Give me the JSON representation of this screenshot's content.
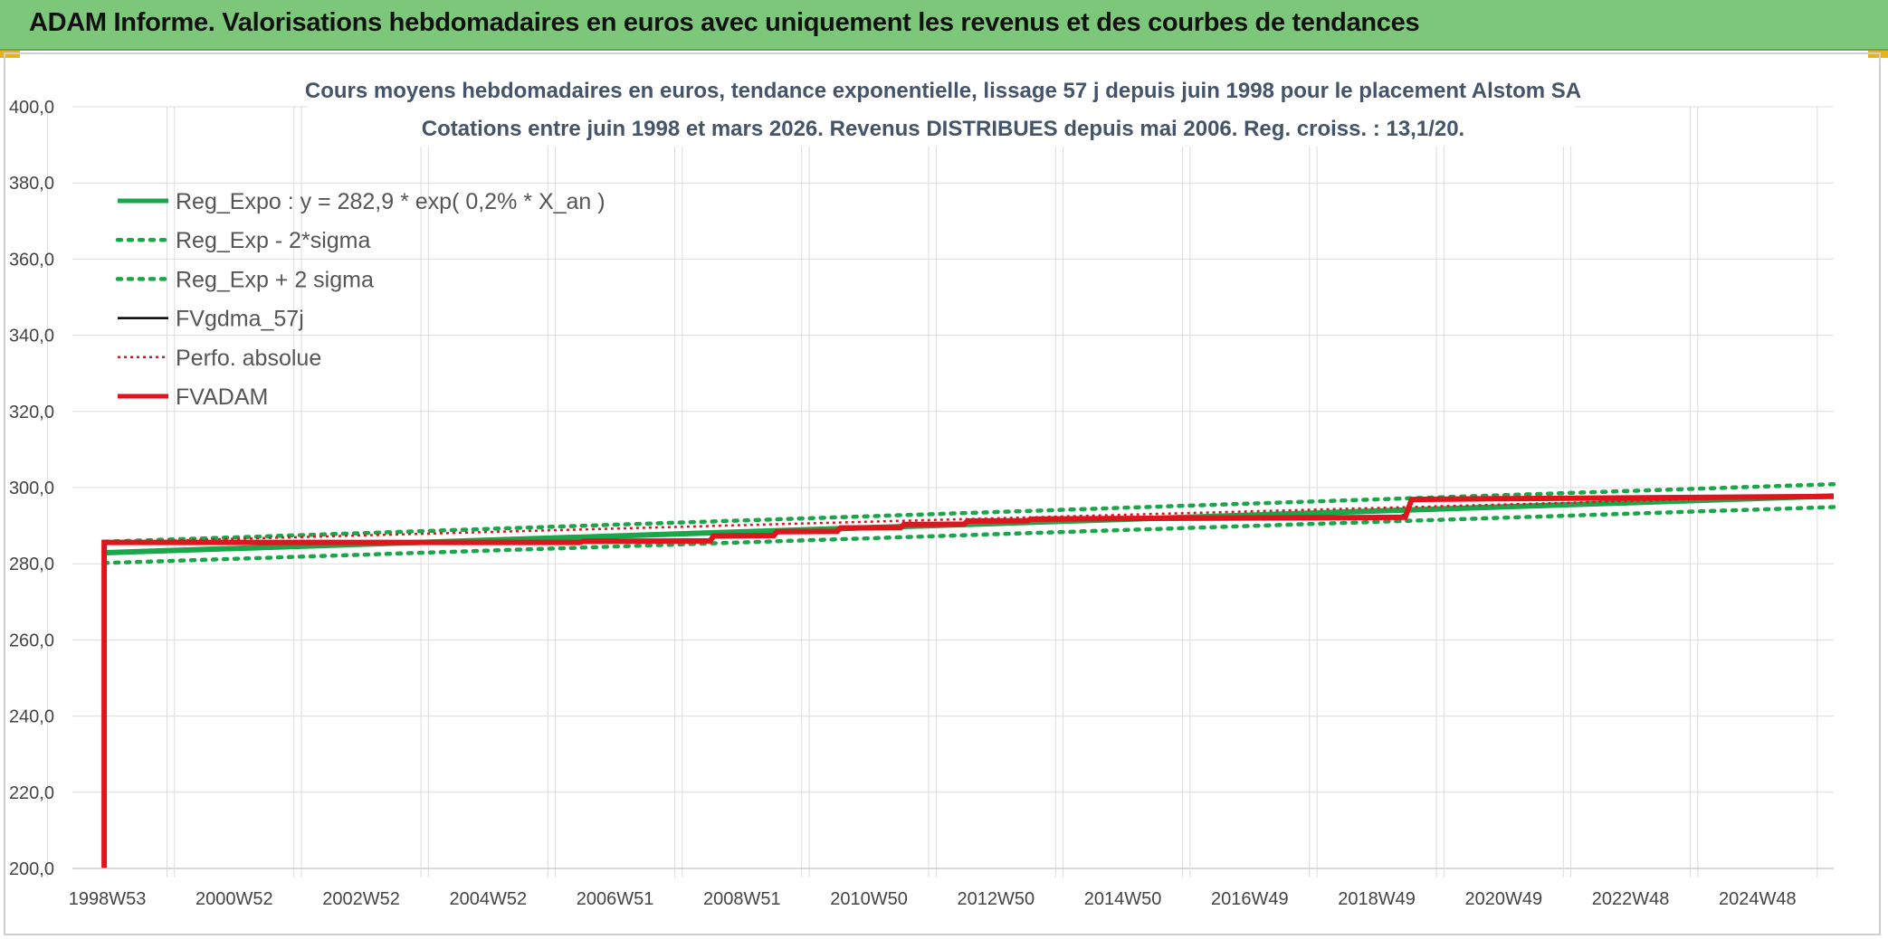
{
  "banner": {
    "title": "ADAM Informe. Valorisations hebdomadaires en euros avec uniquement les revenus et des courbes de tendances"
  },
  "colors": {
    "banner_bg": "#7dc77b",
    "green": "#1aa64a",
    "black": "#000000",
    "red": "#e0141c",
    "grid": "#dadada"
  },
  "chart_data": {
    "type": "line",
    "title": "Cours moyens hebdomadaires en euros, tendance exponentielle, lissage 57 j depuis juin 1998 pour le placement Alstom SA",
    "subtitle": "Cotations entre juin 1998 et mars 2026. Revenus DISTRIBUES depuis mai 2006. Reg. croiss. : 13,1/20.",
    "xlabel": "",
    "ylabel": "",
    "x_range": [
      1998.45,
      2026.2
    ],
    "ylim": [
      200,
      400
    ],
    "y_ticks": [
      "200,0",
      "220,0",
      "240,0",
      "260,0",
      "280,0",
      "300,0",
      "320,0",
      "340,0",
      "360,0",
      "380,0",
      "400,0"
    ],
    "y_tick_values": [
      200,
      220,
      240,
      260,
      280,
      300,
      320,
      340,
      360,
      380,
      400
    ],
    "x_ticks": [
      {
        "label": "1998W53",
        "x": 1999.0
      },
      {
        "label": "2000W52",
        "x": 2001.0
      },
      {
        "label": "2002W52",
        "x": 2003.0
      },
      {
        "label": "2004W52",
        "x": 2005.0
      },
      {
        "label": "2006W51",
        "x": 2007.0
      },
      {
        "label": "2008W51",
        "x": 2009.0
      },
      {
        "label": "2010W50",
        "x": 2011.0
      },
      {
        "label": "2012W50",
        "x": 2013.0
      },
      {
        "label": "2014W50",
        "x": 2015.0
      },
      {
        "label": "2016W49",
        "x": 2017.0
      },
      {
        "label": "2018W49",
        "x": 2019.0
      },
      {
        "label": "2020W49",
        "x": 2021.0
      },
      {
        "label": "2022W48",
        "x": 2023.0
      },
      {
        "label": "2024W48",
        "x": 2025.0
      }
    ],
    "grid": true,
    "legend_position": "top-left",
    "series": [
      {
        "name": "Reg_Expo : y = 282,9 * exp( 0,2% *  X_an )",
        "color": "#1aa64a",
        "style": "solid-thick",
        "points": [
          [
            1998.95,
            282.9
          ],
          [
            2026.2,
            297.8
          ]
        ]
      },
      {
        "name": "Reg_Exp - 2*sigma",
        "color": "#1aa64a",
        "style": "dotted",
        "points": [
          [
            1998.95,
            280.2
          ],
          [
            2026.2,
            294.9
          ]
        ]
      },
      {
        "name": "Reg_Exp + 2 sigma",
        "color": "#1aa64a",
        "style": "dotted",
        "points": [
          [
            1998.95,
            285.8
          ],
          [
            2026.2,
            300.9
          ]
        ]
      },
      {
        "name": "FVgdma_57j",
        "color": "#000000",
        "style": "solid-thin",
        "points": [
          [
            1998.95,
            285.5
          ],
          [
            2006.4,
            285.5
          ],
          [
            2006.45,
            285.9
          ],
          [
            2008.5,
            286.0
          ],
          [
            2008.55,
            287.2
          ],
          [
            2009.5,
            287.3
          ],
          [
            2009.55,
            288.3
          ],
          [
            2010.5,
            288.4
          ],
          [
            2010.55,
            289.3
          ],
          [
            2011.5,
            289.4
          ],
          [
            2011.55,
            290.2
          ],
          [
            2012.5,
            290.3
          ],
          [
            2012.55,
            291.1
          ],
          [
            2013.5,
            291.2
          ],
          [
            2013.55,
            291.6
          ],
          [
            2015.0,
            291.8
          ],
          [
            2016.5,
            291.9
          ],
          [
            2018.5,
            292.0
          ],
          [
            2019.3,
            292.1
          ],
          [
            2019.45,
            293.0
          ],
          [
            2019.55,
            296.8
          ],
          [
            2021.0,
            297.0
          ],
          [
            2023.0,
            297.2
          ],
          [
            2026.2,
            297.6
          ]
        ]
      },
      {
        "name": "Perfo. absolue",
        "color": "#e0141c",
        "style": "dotted-thin",
        "points": [
          [
            1998.95,
            285.6
          ],
          [
            2026.2,
            297.9
          ]
        ]
      },
      {
        "name": "FVADAM",
        "color": "#e0141c",
        "style": "solid-thick",
        "points": [
          [
            1998.95,
            200.0
          ],
          [
            1998.95,
            285.6
          ],
          [
            2006.45,
            285.6
          ],
          [
            2006.5,
            285.9
          ],
          [
            2008.5,
            286.0
          ],
          [
            2008.55,
            287.3
          ],
          [
            2009.5,
            287.4
          ],
          [
            2009.55,
            288.4
          ],
          [
            2010.5,
            288.5
          ],
          [
            2010.55,
            289.4
          ],
          [
            2011.5,
            289.5
          ],
          [
            2011.55,
            290.3
          ],
          [
            2012.5,
            290.4
          ],
          [
            2012.55,
            291.2
          ],
          [
            2013.5,
            291.3
          ],
          [
            2013.55,
            291.7
          ],
          [
            2015.0,
            291.9
          ],
          [
            2016.5,
            292.0
          ],
          [
            2018.5,
            292.1
          ],
          [
            2019.45,
            292.2
          ],
          [
            2019.55,
            296.9
          ],
          [
            2021.0,
            297.1
          ],
          [
            2023.0,
            297.3
          ],
          [
            2026.2,
            297.7
          ]
        ]
      }
    ]
  }
}
